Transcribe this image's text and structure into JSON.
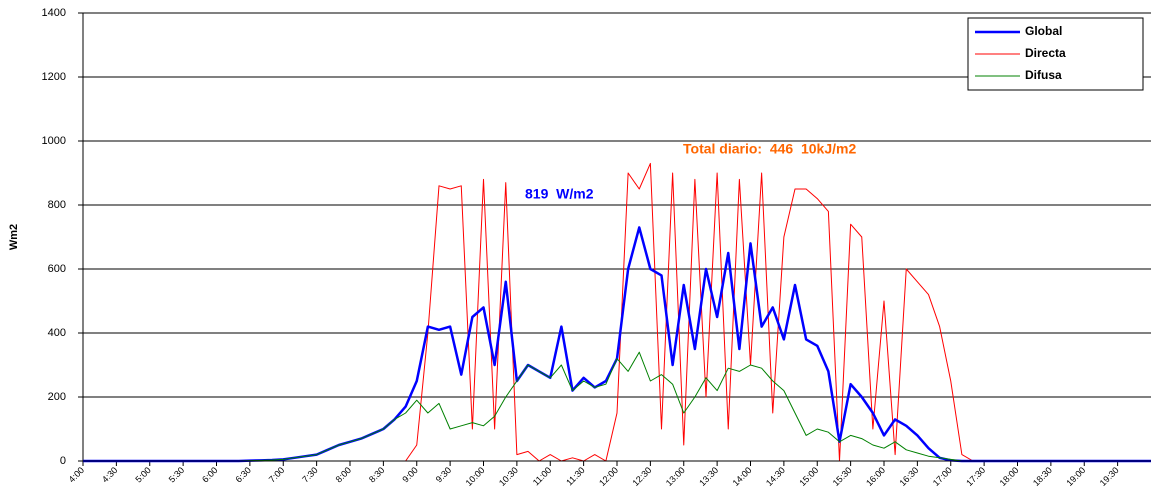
{
  "chart_data": {
    "type": "line",
    "y_label": "Wm2",
    "annotations": [
      {
        "text": "819  W/m2",
        "color": "#0000ff"
      },
      {
        "text": "Total diario:  446  10kJ/m2",
        "color": "#ff6600"
      }
    ],
    "x": [
      240,
      250,
      260,
      270,
      280,
      290,
      300,
      310,
      320,
      330,
      340,
      350,
      360,
      370,
      380,
      390,
      400,
      410,
      420,
      430,
      440,
      450,
      460,
      470,
      480,
      490,
      500,
      510,
      520,
      530,
      540,
      550,
      560,
      570,
      580,
      590,
      600,
      610,
      620,
      630,
      640,
      650,
      660,
      670,
      680,
      690,
      700,
      710,
      720,
      730,
      740,
      750,
      760,
      770,
      780,
      790,
      800,
      810,
      820,
      830,
      840,
      850,
      860,
      870,
      880,
      890,
      900,
      910,
      920,
      930,
      940,
      950,
      960,
      970,
      980,
      990,
      1000,
      1010,
      1020,
      1030,
      1040,
      1050,
      1060,
      1070,
      1080,
      1090,
      1100,
      1110,
      1120,
      1130,
      1140,
      1150,
      1160,
      1170,
      1180,
      1190,
      1200
    ],
    "xlim": [
      240,
      1200
    ],
    "xticks": [
      {
        "value": 240,
        "label": "4:00"
      },
      {
        "value": 270,
        "label": "4:30"
      },
      {
        "value": 300,
        "label": "5:00"
      },
      {
        "value": 330,
        "label": "5:30"
      },
      {
        "value": 360,
        "label": "6:00"
      },
      {
        "value": 390,
        "label": "6:30"
      },
      {
        "value": 420,
        "label": "7:00"
      },
      {
        "value": 450,
        "label": "7:30"
      },
      {
        "value": 480,
        "label": "8:00"
      },
      {
        "value": 510,
        "label": "8:30"
      },
      {
        "value": 540,
        "label": "9:00"
      },
      {
        "value": 570,
        "label": "9:30"
      },
      {
        "value": 600,
        "label": "10:00"
      },
      {
        "value": 630,
        "label": "10:30"
      },
      {
        "value": 660,
        "label": "11:00"
      },
      {
        "value": 690,
        "label": "11:30"
      },
      {
        "value": 720,
        "label": "12:00"
      },
      {
        "value": 750,
        "label": "12:30"
      },
      {
        "value": 780,
        "label": "13:00"
      },
      {
        "value": 810,
        "label": "13:30"
      },
      {
        "value": 840,
        "label": "14:00"
      },
      {
        "value": 870,
        "label": "14:30"
      },
      {
        "value": 900,
        "label": "15:00"
      },
      {
        "value": 930,
        "label": "15:30"
      },
      {
        "value": 960,
        "label": "16:00"
      },
      {
        "value": 990,
        "label": "16:30"
      },
      {
        "value": 1020,
        "label": "17:00"
      },
      {
        "value": 1050,
        "label": "17:30"
      },
      {
        "value": 1080,
        "label": "18:00"
      },
      {
        "value": 1110,
        "label": "18:30"
      },
      {
        "value": 1140,
        "label": "19:00"
      },
      {
        "value": 1170,
        "label": "19:30"
      }
    ],
    "ylim": [
      0,
      1400
    ],
    "yticks": [
      0,
      200,
      400,
      600,
      800,
      1000,
      1200,
      1400
    ],
    "grid": true,
    "legend": "top-right",
    "series": [
      {
        "name": "Global",
        "color": "#0000ff",
        "width": 2.5,
        "values": [
          0,
          0,
          0,
          0,
          0,
          0,
          0,
          0,
          0,
          0,
          0,
          0,
          0,
          0,
          0,
          1,
          2,
          3,
          5,
          10,
          15,
          20,
          35,
          50,
          60,
          70,
          85,
          100,
          130,
          170,
          250,
          420,
          410,
          420,
          270,
          450,
          480,
          300,
          560,
          250,
          300,
          280,
          260,
          420,
          220,
          260,
          230,
          250,
          320,
          600,
          730,
          600,
          580,
          300,
          550,
          350,
          600,
          450,
          650,
          350,
          680,
          420,
          480,
          380,
          550,
          380,
          360,
          280,
          60,
          240,
          200,
          150,
          80,
          130,
          110,
          80,
          40,
          10,
          2,
          0,
          0,
          0,
          0,
          0,
          0,
          0,
          0,
          0,
          0,
          0,
          0,
          0,
          0,
          0,
          0,
          0,
          0
        ]
      },
      {
        "name": "Directa",
        "color": "#ff0000",
        "width": 1,
        "values": [
          0,
          0,
          0,
          0,
          0,
          0,
          0,
          0,
          0,
          0,
          0,
          0,
          0,
          0,
          0,
          0,
          0,
          0,
          0,
          0,
          0,
          0,
          0,
          0,
          0,
          0,
          0,
          0,
          0,
          0,
          50,
          400,
          860,
          850,
          860,
          100,
          880,
          100,
          870,
          20,
          30,
          0,
          20,
          0,
          10,
          0,
          20,
          0,
          150,
          900,
          850,
          930,
          100,
          900,
          50,
          880,
          200,
          900,
          100,
          880,
          300,
          900,
          150,
          700,
          850,
          850,
          820,
          780,
          0,
          740,
          700,
          100,
          500,
          20,
          600,
          560,
          520,
          420,
          250,
          20,
          0,
          0,
          0,
          0,
          0,
          0,
          0,
          0,
          0,
          0,
          0,
          0,
          0,
          0,
          0,
          0,
          0
        ]
      },
      {
        "name": "Difusa",
        "color": "#008000",
        "width": 1,
        "values": [
          0,
          0,
          0,
          0,
          0,
          0,
          0,
          0,
          0,
          0,
          0,
          0,
          0,
          0,
          0,
          1,
          2,
          3,
          5,
          10,
          15,
          20,
          35,
          50,
          60,
          70,
          85,
          100,
          130,
          150,
          190,
          150,
          180,
          100,
          110,
          120,
          110,
          140,
          200,
          250,
          300,
          280,
          260,
          300,
          220,
          250,
          230,
          240,
          320,
          280,
          340,
          250,
          270,
          240,
          150,
          200,
          260,
          220,
          290,
          280,
          300,
          290,
          250,
          220,
          150,
          80,
          100,
          90,
          60,
          80,
          70,
          50,
          40,
          60,
          35,
          25,
          15,
          10,
          5,
          0,
          0,
          0,
          0,
          0,
          0,
          0,
          0,
          0,
          0,
          0,
          0,
          0,
          0,
          0,
          0,
          0,
          0
        ]
      }
    ]
  }
}
